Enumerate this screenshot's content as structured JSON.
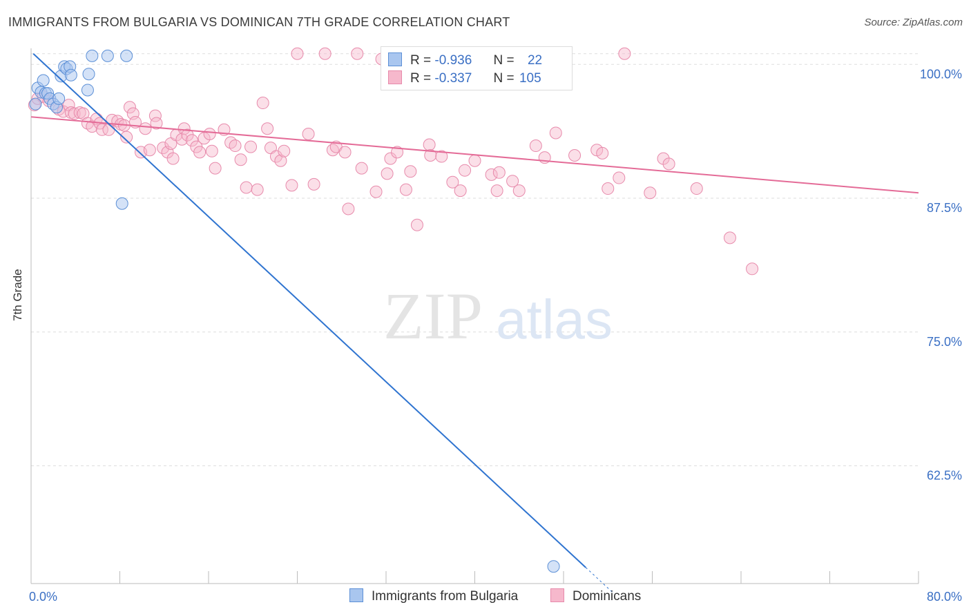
{
  "title": "IMMIGRANTS FROM BULGARIA VS DOMINICAN 7TH GRADE CORRELATION CHART",
  "source": "Source: ZipAtlas.com",
  "watermark": {
    "zip": "ZIP",
    "atlas": "atlas"
  },
  "legend_box": {
    "bulgaria": {
      "r_label": "R =",
      "r_value": "-0.936",
      "n_label": "N =",
      "n_value": "22"
    },
    "dominican": {
      "r_label": "R =",
      "r_value": "-0.337",
      "n_label": "N =",
      "n_value": "105"
    }
  },
  "bottom_legend": {
    "bulgaria": "Immigrants from Bulgaria",
    "dominican": "Dominicans"
  },
  "colors": {
    "bulgaria_fill": "#a9c6ef",
    "bulgaria_stroke": "#5b8fd6",
    "bulgaria_line": "#2f74d0",
    "dominican_fill": "#f6b8cc",
    "dominican_stroke": "#e78aab",
    "dominican_line": "#e46b97",
    "axis_label": "#3a6fc4",
    "grid": "#dddddd"
  },
  "chart_data": {
    "type": "scatter",
    "title": "IMMIGRANTS FROM BULGARIA VS DOMINICAN 7TH GRADE CORRELATION CHART",
    "xlabel": "",
    "ylabel": "7th Grade",
    "xlim": [
      0,
      80
    ],
    "ylim": [
      51.5,
      101.5
    ],
    "x_tick_labels": [
      "0.0%",
      "80.0%"
    ],
    "y_ticks": [
      100,
      87.5,
      75,
      62.5
    ],
    "y_tick_labels": [
      "100.0%",
      "87.5%",
      "75.0%",
      "62.5%"
    ],
    "grid": true,
    "legend_position": "top-center",
    "series": [
      {
        "name": "Immigrants from Bulgaria",
        "r": -0.936,
        "n": 22,
        "trend": {
          "x": [
            0.2,
            50.0
          ],
          "y": [
            101.0,
            53.0
          ],
          "dashed_to": [
            52.5,
            50.6
          ]
        },
        "points": [
          [
            0.4,
            96.3
          ],
          [
            0.6,
            97.8
          ],
          [
            0.9,
            97.4
          ],
          [
            1.1,
            98.5
          ],
          [
            1.3,
            97.3
          ],
          [
            1.5,
            97.3
          ],
          [
            1.7,
            96.8
          ],
          [
            2.0,
            96.3
          ],
          [
            2.3,
            96.0
          ],
          [
            2.5,
            96.8
          ],
          [
            2.7,
            98.9
          ],
          [
            3.0,
            99.8
          ],
          [
            3.2,
            99.6
          ],
          [
            3.5,
            99.8
          ],
          [
            3.6,
            99.0
          ],
          [
            5.1,
            97.6
          ],
          [
            5.2,
            99.1
          ],
          [
            5.5,
            100.8
          ],
          [
            6.9,
            100.8
          ],
          [
            8.2,
            87.0
          ],
          [
            8.6,
            100.8
          ],
          [
            47.1,
            53.1
          ]
        ]
      },
      {
        "name": "Dominicans",
        "r": -0.337,
        "n": 105,
        "trend": {
          "x": [
            0.0,
            80.0
          ],
          "y": [
            95.1,
            88.0
          ]
        },
        "points": [
          [
            0.3,
            96.2
          ],
          [
            0.6,
            96.8
          ],
          [
            1.1,
            97.0
          ],
          [
            1.6,
            96.6
          ],
          [
            2.5,
            95.8
          ],
          [
            2.9,
            95.6
          ],
          [
            3.4,
            96.2
          ],
          [
            3.6,
            95.5
          ],
          [
            3.9,
            95.4
          ],
          [
            4.4,
            95.5
          ],
          [
            4.7,
            95.4
          ],
          [
            5.1,
            94.5
          ],
          [
            5.5,
            94.2
          ],
          [
            5.9,
            94.9
          ],
          [
            6.2,
            94.5
          ],
          [
            6.4,
            93.9
          ],
          [
            7.0,
            93.9
          ],
          [
            7.3,
            94.8
          ],
          [
            7.8,
            94.7
          ],
          [
            8.1,
            94.4
          ],
          [
            8.4,
            94.3
          ],
          [
            8.6,
            93.2
          ],
          [
            8.9,
            96.0
          ],
          [
            9.2,
            95.4
          ],
          [
            9.4,
            94.6
          ],
          [
            9.9,
            91.8
          ],
          [
            10.3,
            94.0
          ],
          [
            10.7,
            92.0
          ],
          [
            11.2,
            95.2
          ],
          [
            11.3,
            94.5
          ],
          [
            11.9,
            92.2
          ],
          [
            12.3,
            91.8
          ],
          [
            12.6,
            92.6
          ],
          [
            12.8,
            91.2
          ],
          [
            13.1,
            93.4
          ],
          [
            13.6,
            93.0
          ],
          [
            13.8,
            94.0
          ],
          [
            14.1,
            93.4
          ],
          [
            14.5,
            92.9
          ],
          [
            14.9,
            92.3
          ],
          [
            15.2,
            91.8
          ],
          [
            15.6,
            93.1
          ],
          [
            16.1,
            93.5
          ],
          [
            16.3,
            91.9
          ],
          [
            16.6,
            90.3
          ],
          [
            17.4,
            93.9
          ],
          [
            18.0,
            92.7
          ],
          [
            18.4,
            92.4
          ],
          [
            18.9,
            91.1
          ],
          [
            19.4,
            88.5
          ],
          [
            19.8,
            92.3
          ],
          [
            20.4,
            88.3
          ],
          [
            20.9,
            96.4
          ],
          [
            21.3,
            94.0
          ],
          [
            21.6,
            92.2
          ],
          [
            22.1,
            91.4
          ],
          [
            22.5,
            91.0
          ],
          [
            22.8,
            91.9
          ],
          [
            23.5,
            88.7
          ],
          [
            24.0,
            101.0
          ],
          [
            25.0,
            93.5
          ],
          [
            25.5,
            88.8
          ],
          [
            26.5,
            101.0
          ],
          [
            27.2,
            92.0
          ],
          [
            27.5,
            92.3
          ],
          [
            28.3,
            91.8
          ],
          [
            28.6,
            86.5
          ],
          [
            29.4,
            101.0
          ],
          [
            29.8,
            90.3
          ],
          [
            31.1,
            88.1
          ],
          [
            31.6,
            100.5
          ],
          [
            32.1,
            89.8
          ],
          [
            32.4,
            91.2
          ],
          [
            33.0,
            91.8
          ],
          [
            33.8,
            88.3
          ],
          [
            34.2,
            90.0
          ],
          [
            34.8,
            85.0
          ],
          [
            35.0,
            101.0
          ],
          [
            35.9,
            92.5
          ],
          [
            36.0,
            91.5
          ],
          [
            37.0,
            91.4
          ],
          [
            38.0,
            89.0
          ],
          [
            38.7,
            88.2
          ],
          [
            39.1,
            90.1
          ],
          [
            40.0,
            91.0
          ],
          [
            41.5,
            89.7
          ],
          [
            42.0,
            88.2
          ],
          [
            42.2,
            89.9
          ],
          [
            43.4,
            89.1
          ],
          [
            44.0,
            88.2
          ],
          [
            45.5,
            92.4
          ],
          [
            46.3,
            91.3
          ],
          [
            47.3,
            93.6
          ],
          [
            49.0,
            91.5
          ],
          [
            51.0,
            92.0
          ],
          [
            51.5,
            91.7
          ],
          [
            52.0,
            88.4
          ],
          [
            53.0,
            89.4
          ],
          [
            53.5,
            101.0
          ],
          [
            55.8,
            88.0
          ],
          [
            57.0,
            91.2
          ],
          [
            57.5,
            90.7
          ],
          [
            60.0,
            88.4
          ],
          [
            63.0,
            83.8
          ],
          [
            65.0,
            80.9
          ]
        ]
      }
    ]
  }
}
